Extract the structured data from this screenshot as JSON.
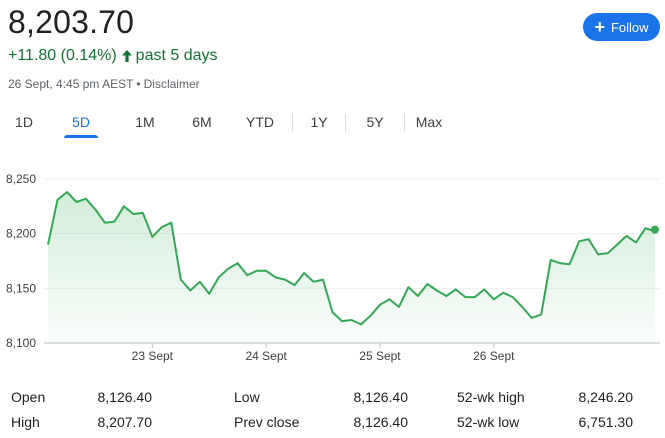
{
  "header": {
    "price": "8,203.70",
    "change": "+11.80 (0.14%)",
    "period": "past 5 days",
    "timestamp": "26 Sept, 4:45 pm AEST",
    "disclaimer": "Disclaimer",
    "follow_label": "Follow"
  },
  "tabs": [
    {
      "label": "1D",
      "active": false
    },
    {
      "label": "5D",
      "active": true
    },
    {
      "label": "1M",
      "active": false
    },
    {
      "label": "6M",
      "active": false
    },
    {
      "label": "YTD",
      "active": false
    },
    {
      "label": "1Y",
      "active": false
    },
    {
      "label": "5Y",
      "active": false
    },
    {
      "label": "Max",
      "active": false
    }
  ],
  "colors": {
    "line": "#34a853",
    "accent": "#1a73e8",
    "positive": "#137333"
  },
  "chart_data": {
    "type": "area",
    "y_ticks": [
      "8,250",
      "8,200",
      "8,150",
      "8,100"
    ],
    "y_tick_values": [
      8250,
      8200,
      8150,
      8100
    ],
    "ylim": [
      8100,
      8250
    ],
    "x_tick_labels": [
      "23 Sept",
      "24 Sept",
      "25 Sept",
      "26 Sept"
    ],
    "x_tick_index": [
      11,
      23,
      35,
      47
    ],
    "values": [
      8190,
      8231,
      8238,
      8229,
      8232,
      8222,
      8210,
      8211,
      8225,
      8218,
      8219,
      8197,
      8206,
      8210,
      8158,
      8148,
      8156,
      8145,
      8160,
      8168,
      8173,
      8162,
      8166,
      8166,
      8160,
      8158,
      8153,
      8164,
      8156,
      8158,
      8128,
      8120,
      8121,
      8117,
      8125,
      8135,
      8140,
      8133,
      8151,
      8143,
      8154,
      8148,
      8143,
      8149,
      8142,
      8142,
      8149,
      8140,
      8146,
      8142,
      8133,
      8123,
      8126,
      8176,
      8173,
      8172,
      8193,
      8195,
      8181,
      8182,
      8190,
      8198,
      8192,
      8205,
      8202
    ],
    "last_value": 8203.7,
    "grid": true
  },
  "stats": [
    {
      "label": "Open",
      "value": "8,126.40"
    },
    {
      "label": "High",
      "value": "8,207.70"
    },
    {
      "label": "Low",
      "value": "8,126.40"
    },
    {
      "label": "Prev close",
      "value": "8,126.40"
    },
    {
      "label": "52-wk high",
      "value": "8,246.20"
    },
    {
      "label": "52-wk low",
      "value": "6,751.30"
    }
  ]
}
